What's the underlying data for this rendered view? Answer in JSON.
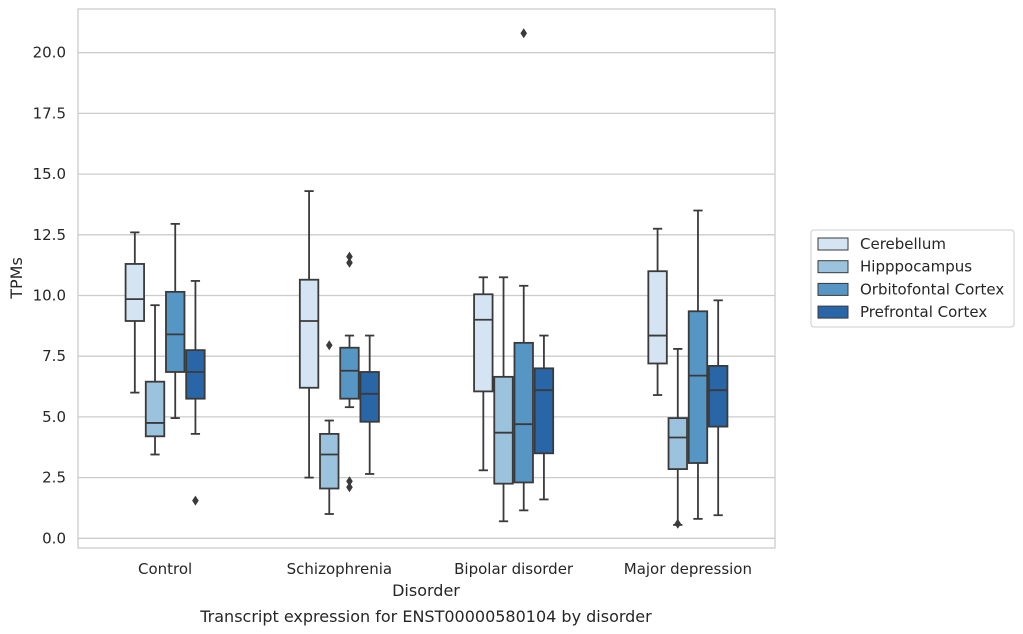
{
  "caption": "Transcript expression for ENST00000580104 by disorder",
  "chart_data": {
    "type": "boxplot",
    "title": "",
    "xlabel": "Disorder",
    "ylabel": "TPMs",
    "ylim": [
      -0.4,
      21.8
    ],
    "yticks": [
      "0.0",
      "2.5",
      "5.0",
      "7.5",
      "10.0",
      "12.5",
      "15.0",
      "17.5",
      "20.0"
    ],
    "grid": "horizontal",
    "legend_position": "right",
    "categories": [
      "Control",
      "Schizophrenia",
      "Bipolar disorder",
      "Major depression"
    ],
    "series": [
      {
        "name": "Cerebellum",
        "color": "#d4e4f3",
        "boxes": [
          {
            "whislo": 6.0,
            "q1": 8.95,
            "med": 9.85,
            "q3": 11.3,
            "whishi": 12.6,
            "fliers": []
          },
          {
            "whislo": 2.5,
            "q1": 6.2,
            "med": 8.95,
            "q3": 10.65,
            "whishi": 14.3,
            "fliers": []
          },
          {
            "whislo": 2.8,
            "q1": 6.05,
            "med": 9.0,
            "q3": 10.05,
            "whishi": 10.75,
            "fliers": []
          },
          {
            "whislo": 5.9,
            "q1": 7.2,
            "med": 8.35,
            "q3": 11.0,
            "whishi": 12.75,
            "fliers": []
          }
        ]
      },
      {
        "name": "Hipppocampus",
        "color": "#9bc3dd",
        "boxes": [
          {
            "whislo": 3.45,
            "q1": 4.2,
            "med": 4.75,
            "q3": 6.45,
            "whishi": 9.6,
            "fliers": []
          },
          {
            "whislo": 1.0,
            "q1": 2.05,
            "med": 3.45,
            "q3": 4.3,
            "whishi": 4.85,
            "fliers": [
              7.95
            ]
          },
          {
            "whislo": 0.7,
            "q1": 2.25,
            "med": 4.35,
            "q3": 6.65,
            "whishi": 10.75,
            "fliers": []
          },
          {
            "whislo": 0.55,
            "q1": 2.85,
            "med": 4.15,
            "q3": 4.95,
            "whishi": 7.8,
            "fliers": [
              0.6
            ]
          }
        ]
      },
      {
        "name": "Orbitofontal Cortex",
        "color": "#5596c4",
        "boxes": [
          {
            "whislo": 4.95,
            "q1": 6.85,
            "med": 8.4,
            "q3": 10.15,
            "whishi": 12.95,
            "fliers": []
          },
          {
            "whislo": 5.4,
            "q1": 5.75,
            "med": 6.9,
            "q3": 7.85,
            "whishi": 8.35,
            "fliers": [
              11.35,
              11.6,
              2.35,
              2.1
            ]
          },
          {
            "whislo": 1.15,
            "q1": 2.3,
            "med": 4.7,
            "q3": 8.05,
            "whishi": 10.4,
            "fliers": [
              20.8
            ]
          },
          {
            "whislo": 0.8,
            "q1": 3.1,
            "med": 6.7,
            "q3": 9.35,
            "whishi": 13.5,
            "fliers": []
          }
        ]
      },
      {
        "name": "Prefrontal Cortex",
        "color": "#2966a8",
        "boxes": [
          {
            "whislo": 4.3,
            "q1": 5.75,
            "med": 6.85,
            "q3": 7.75,
            "whishi": 10.6,
            "fliers": [
              1.55
            ]
          },
          {
            "whislo": 2.65,
            "q1": 4.8,
            "med": 5.95,
            "q3": 6.85,
            "whishi": 8.35,
            "fliers": []
          },
          {
            "whislo": 1.6,
            "q1": 3.5,
            "med": 6.1,
            "q3": 7.0,
            "whishi": 8.35,
            "fliers": []
          },
          {
            "whislo": 0.95,
            "q1": 4.6,
            "med": 6.1,
            "q3": 7.1,
            "whishi": 9.8,
            "fliers": []
          }
        ]
      }
    ]
  }
}
